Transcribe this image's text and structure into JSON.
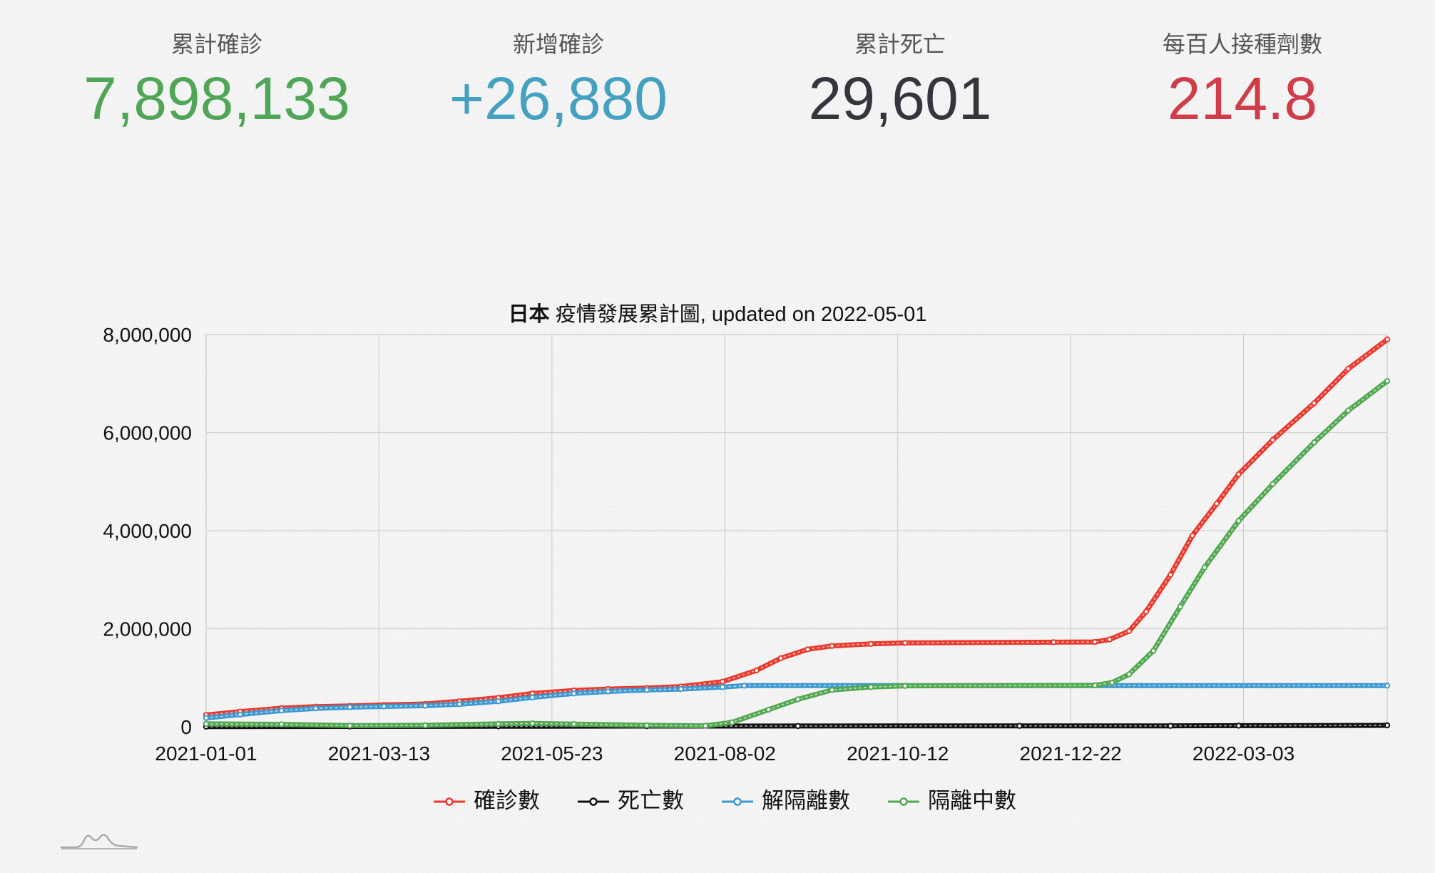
{
  "stats": [
    {
      "label": "累計確診",
      "value": "7,898,133",
      "color": "#4fa657"
    },
    {
      "label": "新增確診",
      "value": "+26,880",
      "color": "#44a1c0"
    },
    {
      "label": "累計死亡",
      "value": "29,601",
      "color": "#33373d"
    },
    {
      "label": "每百人接種劑數",
      "value": "214.8",
      "color": "#cf3d4a"
    }
  ],
  "chart_data": {
    "type": "line",
    "title_bold": "日本",
    "title_rest": "疫情發展累計圖, updated on 2022-05-01",
    "x_tick_labels": [
      "2021-01-01",
      "2021-03-13",
      "2021-05-23",
      "2021-08-02",
      "2021-10-12",
      "2021-12-22",
      "2022-03-03"
    ],
    "x_range": [
      "2021-01-01",
      "2022-05-01"
    ],
    "y_tick_labels": [
      "0",
      "2,000,000",
      "4,000,000",
      "6,000,000",
      "8,000,000"
    ],
    "ylim": [
      0,
      8000000
    ],
    "grid": true,
    "legend_position": "bottom",
    "series": [
      {
        "name": "確診數",
        "color": "#e8392c",
        "points": [
          [
            "2021-01-01",
            240000
          ],
          [
            "2021-01-15",
            310000
          ],
          [
            "2021-02-01",
            380000
          ],
          [
            "2021-02-15",
            410000
          ],
          [
            "2021-03-01",
            425000
          ],
          [
            "2021-03-15",
            445000
          ],
          [
            "2021-04-01",
            465000
          ],
          [
            "2021-04-15",
            520000
          ],
          [
            "2021-05-01",
            590000
          ],
          [
            "2021-05-15",
            680000
          ],
          [
            "2021-06-01",
            740000
          ],
          [
            "2021-06-15",
            770000
          ],
          [
            "2021-07-01",
            790000
          ],
          [
            "2021-07-15",
            820000
          ],
          [
            "2021-08-01",
            920000
          ],
          [
            "2021-08-15",
            1150000
          ],
          [
            "2021-08-25",
            1400000
          ],
          [
            "2021-09-05",
            1580000
          ],
          [
            "2021-09-15",
            1650000
          ],
          [
            "2021-10-01",
            1690000
          ],
          [
            "2021-10-15",
            1710000
          ],
          [
            "2021-12-15",
            1725000
          ],
          [
            "2022-01-01",
            1730000
          ],
          [
            "2022-01-07",
            1780000
          ],
          [
            "2022-01-15",
            1950000
          ],
          [
            "2022-01-22",
            2350000
          ],
          [
            "2022-02-01",
            3100000
          ],
          [
            "2022-02-10",
            3900000
          ],
          [
            "2022-02-20",
            4550000
          ],
          [
            "2022-03-01",
            5150000
          ],
          [
            "2022-03-15",
            5850000
          ],
          [
            "2022-04-01",
            6600000
          ],
          [
            "2022-04-15",
            7300000
          ],
          [
            "2022-05-01",
            7900000
          ]
        ]
      },
      {
        "name": "死亡數",
        "color": "#111111",
        "points": [
          [
            "2021-01-01",
            3500
          ],
          [
            "2021-03-01",
            8000
          ],
          [
            "2021-05-01",
            10500
          ],
          [
            "2021-07-01",
            14500
          ],
          [
            "2021-09-01",
            16000
          ],
          [
            "2021-12-01",
            18300
          ],
          [
            "2022-02-01",
            19600
          ],
          [
            "2022-03-01",
            24000
          ],
          [
            "2022-05-01",
            29601
          ]
        ]
      },
      {
        "name": "解隔離數",
        "color": "#3d98cf",
        "points": [
          [
            "2021-01-01",
            180000
          ],
          [
            "2021-01-15",
            250000
          ],
          [
            "2021-02-01",
            330000
          ],
          [
            "2021-02-15",
            375000
          ],
          [
            "2021-03-01",
            400000
          ],
          [
            "2021-03-15",
            415000
          ],
          [
            "2021-04-01",
            430000
          ],
          [
            "2021-04-15",
            460000
          ],
          [
            "2021-05-01",
            520000
          ],
          [
            "2021-05-15",
            600000
          ],
          [
            "2021-06-01",
            680000
          ],
          [
            "2021-06-15",
            720000
          ],
          [
            "2021-07-01",
            750000
          ],
          [
            "2021-07-15",
            770000
          ],
          [
            "2021-08-01",
            810000
          ],
          [
            "2021-08-10",
            840000
          ],
          [
            "2022-05-01",
            840000
          ]
        ]
      },
      {
        "name": "隔離中數",
        "color": "#51a850",
        "points": [
          [
            "2021-01-01",
            60000
          ],
          [
            "2021-02-01",
            50000
          ],
          [
            "2021-03-01",
            25000
          ],
          [
            "2021-04-01",
            30000
          ],
          [
            "2021-05-01",
            60000
          ],
          [
            "2021-05-15",
            70000
          ],
          [
            "2021-06-01",
            55000
          ],
          [
            "2021-07-01",
            30000
          ],
          [
            "2021-07-25",
            20000
          ],
          [
            "2021-08-05",
            90000
          ],
          [
            "2021-08-20",
            350000
          ],
          [
            "2021-09-01",
            560000
          ],
          [
            "2021-09-15",
            750000
          ],
          [
            "2021-10-01",
            810000
          ],
          [
            "2021-10-15",
            835000
          ],
          [
            "2022-01-01",
            845000
          ],
          [
            "2022-01-08",
            900000
          ],
          [
            "2022-01-15",
            1070000
          ],
          [
            "2022-01-25",
            1550000
          ],
          [
            "2022-02-05",
            2450000
          ],
          [
            "2022-02-15",
            3250000
          ],
          [
            "2022-03-01",
            4200000
          ],
          [
            "2022-03-15",
            4950000
          ],
          [
            "2022-04-01",
            5800000
          ],
          [
            "2022-04-15",
            6450000
          ],
          [
            "2022-05-01",
            7050000
          ]
        ]
      }
    ]
  }
}
